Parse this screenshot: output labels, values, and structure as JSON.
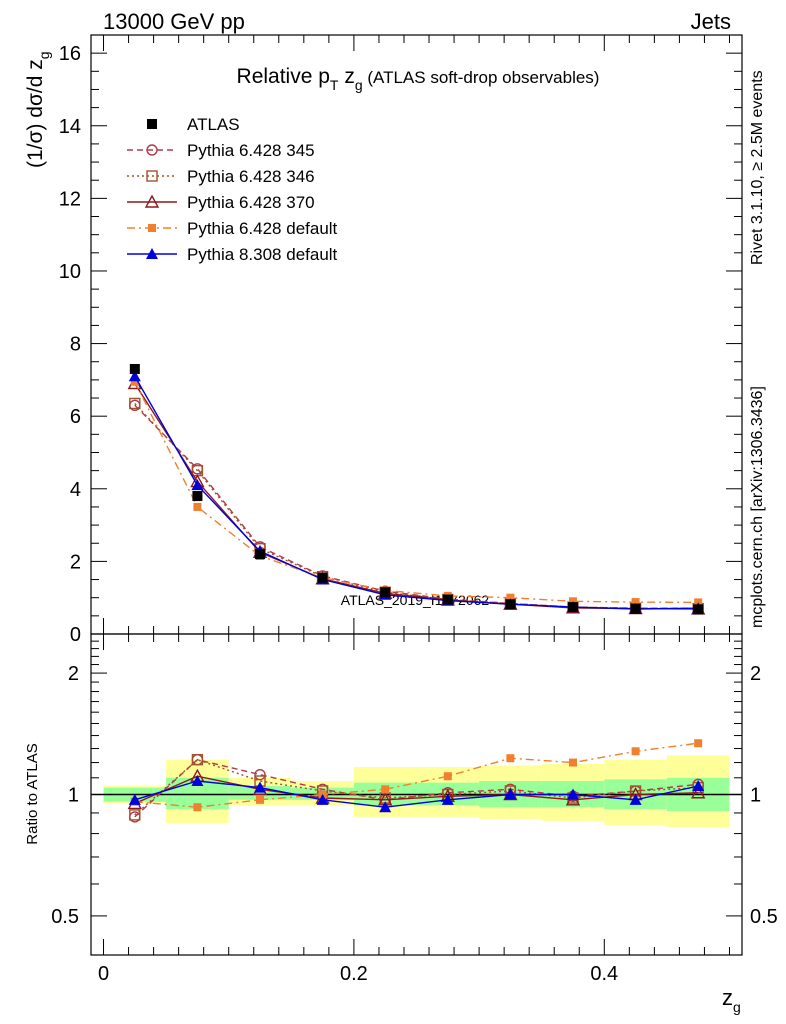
{
  "header": {
    "left": "13000 GeV pp",
    "right": "Jets"
  },
  "side_labels": {
    "rivet": "Rivet 3.1.10, ≥ 2.5M events",
    "mcplots": "mcplots.cern.ch [arXiv:1306.3436]"
  },
  "watermark": "ATLAS_2019_I1772062",
  "chart_data": [
    {
      "type": "line",
      "title_parts": {
        "pre": "Relative p",
        "sub1": "T",
        "mid": " z",
        "sub2": "g",
        "post": " (ATLAS soft-drop observables)"
      },
      "ylabel_parts": {
        "pre": "(1/σ) dσ/d z",
        "sub": "g"
      },
      "xlim": [
        -0.01,
        0.51
      ],
      "ylim": [
        0,
        16.5
      ],
      "y_ticks": [
        0,
        2,
        4,
        6,
        8,
        10,
        12,
        14,
        16
      ],
      "x": [
        0.025,
        0.075,
        0.125,
        0.175,
        0.225,
        0.275,
        0.325,
        0.375,
        0.425,
        0.475
      ],
      "legend_position": "top-left",
      "series": [
        {
          "name": "ATLAS",
          "values": [
            7.3,
            3.8,
            2.2,
            1.55,
            1.15,
            0.95,
            0.82,
            0.74,
            0.7,
            0.68
          ],
          "color": "#000000",
          "marker": "square-filled",
          "line": "none"
        },
        {
          "name": "Pythia 6.428 345",
          "values": [
            6.3,
            4.55,
            2.4,
            1.6,
            1.18,
            0.96,
            0.84,
            0.74,
            0.71,
            0.71
          ],
          "color": "#b03a48",
          "marker": "circle-open",
          "line": "dashed"
        },
        {
          "name": "Pythia 6.428 346",
          "values": [
            6.35,
            4.5,
            2.35,
            1.58,
            1.15,
            0.95,
            0.84,
            0.74,
            0.71,
            0.7
          ],
          "color": "#a0522d",
          "marker": "square-open",
          "line": "dotted"
        },
        {
          "name": "Pythia 6.428 370",
          "values": [
            6.9,
            4.2,
            2.25,
            1.52,
            1.12,
            0.94,
            0.82,
            0.72,
            0.7,
            0.69
          ],
          "color": "#8b1a1a",
          "marker": "triangle-open",
          "line": "solid"
        },
        {
          "name": "Pythia 6.428 default",
          "values": [
            6.95,
            3.5,
            2.15,
            1.55,
            1.2,
            1.05,
            1.0,
            0.9,
            0.88,
            0.87
          ],
          "color": "#f08030",
          "marker": "square-filled-small",
          "line": "dashdot"
        },
        {
          "name": "Pythia 8.308 default",
          "values": [
            7.1,
            4.1,
            2.28,
            1.5,
            1.08,
            0.92,
            0.82,
            0.74,
            0.69,
            0.71
          ],
          "color": "#0000dd",
          "marker": "triangle-filled",
          "line": "solid"
        }
      ]
    },
    {
      "type": "line",
      "ylabel": "Ratio to ATLAS",
      "xlabel_parts": {
        "pre": "z",
        "sub": "g"
      },
      "yscale": "log",
      "ylim": [
        0.4,
        2.5
      ],
      "y_ticks": [
        0.5,
        1,
        2
      ],
      "x_ticks": [
        0,
        0.2,
        0.4
      ],
      "x": [
        0.025,
        0.075,
        0.125,
        0.175,
        0.225,
        0.275,
        0.325,
        0.375,
        0.425,
        0.475
      ],
      "bands": {
        "inner": [
          [
            0.96,
            1.04
          ],
          [
            0.92,
            1.1
          ],
          [
            0.97,
            1.05
          ],
          [
            0.97,
            1.04
          ],
          [
            0.94,
            1.07
          ],
          [
            0.94,
            1.07
          ],
          [
            0.93,
            1.08
          ],
          [
            0.93,
            1.08
          ],
          [
            0.92,
            1.09
          ],
          [
            0.91,
            1.1
          ]
        ],
        "outer": [
          [
            0.95,
            1.05
          ],
          [
            0.85,
            1.22
          ],
          [
            0.94,
            1.1
          ],
          [
            0.94,
            1.08
          ],
          [
            0.88,
            1.17
          ],
          [
            0.88,
            1.17
          ],
          [
            0.87,
            1.18
          ],
          [
            0.86,
            1.19
          ],
          [
            0.84,
            1.22
          ],
          [
            0.83,
            1.25
          ]
        ],
        "inner_color": "#99ff99",
        "outer_color": "#ffff99"
      },
      "series": [
        {
          "name": "Pythia 6.428 345",
          "values": [
            0.88,
            1.22,
            1.12,
            1.03,
            0.97,
            1.01,
            1.03,
            0.99,
            1.02,
            1.06
          ]
        },
        {
          "name": "Pythia 6.428 346",
          "values": [
            0.89,
            1.22,
            1.08,
            1.02,
            0.98,
            1.0,
            1.02,
            0.98,
            1.02,
            1.04
          ]
        },
        {
          "name": "Pythia 6.428 370",
          "values": [
            0.95,
            1.11,
            1.03,
            0.98,
            0.97,
            0.99,
            1.0,
            0.97,
            1.0,
            1.01
          ]
        },
        {
          "name": "Pythia 6.428 default",
          "values": [
            0.96,
            0.93,
            0.97,
            1.0,
            1.03,
            1.11,
            1.23,
            1.2,
            1.28,
            1.34
          ]
        },
        {
          "name": "Pythia 8.308 default",
          "values": [
            0.97,
            1.08,
            1.04,
            0.97,
            0.93,
            0.97,
            1.0,
            1.0,
            0.97,
            1.05
          ]
        }
      ]
    }
  ]
}
